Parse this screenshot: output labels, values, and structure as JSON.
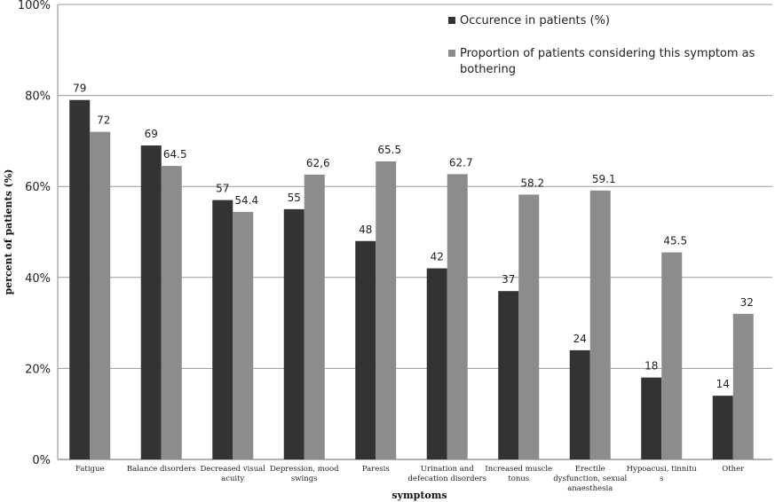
{
  "chart_data": {
    "type": "bar",
    "title": "",
    "xlabel": "symptoms",
    "ylabel": "percent of patients (%)",
    "ylim": [
      0,
      100
    ],
    "yticks": [
      0,
      20,
      40,
      60,
      80,
      100
    ],
    "ytick_labels": [
      "0%",
      "20%",
      "40%",
      "60%",
      "80%",
      "100%"
    ],
    "grid": true,
    "legend_position": "top-right",
    "categories": [
      [
        "Fatigue"
      ],
      [
        "Balance disorders"
      ],
      [
        "Decreased visual",
        "acuity"
      ],
      [
        "Depression, mood",
        "swings"
      ],
      [
        "Paresis"
      ],
      [
        "Urination and",
        "defecation disorders"
      ],
      [
        "Increased muscle",
        "tonus"
      ],
      [
        "Erectile",
        "dysfunction, sexual",
        "anaesthesia"
      ],
      [
        "Hypoacusi, tinnitu",
        "s"
      ],
      [
        "Other"
      ]
    ],
    "series": [
      {
        "name": "Occurence in patients  (%)",
        "color": "#333333",
        "values": [
          79,
          69,
          57,
          55,
          48,
          42,
          37,
          24,
          18,
          14
        ],
        "labels": [
          "79",
          "69",
          "57",
          "55",
          "48",
          "42",
          "37",
          "24",
          "18",
          "14"
        ]
      },
      {
        "name": "Proportion of patients considering this symptom as bothering",
        "legend_lines": [
          "Proportion of patients considering this symptom as",
          "bothering"
        ],
        "color": "#8c8c8c",
        "values": [
          72,
          64.5,
          54.4,
          62.6,
          65.5,
          62.7,
          58.2,
          59.1,
          45.5,
          32
        ],
        "labels": [
          "72",
          "64.5",
          "54.4",
          "62,6",
          "65.5",
          "62.7",
          "58.2",
          "59.1",
          "45.5",
          "32"
        ]
      }
    ]
  }
}
